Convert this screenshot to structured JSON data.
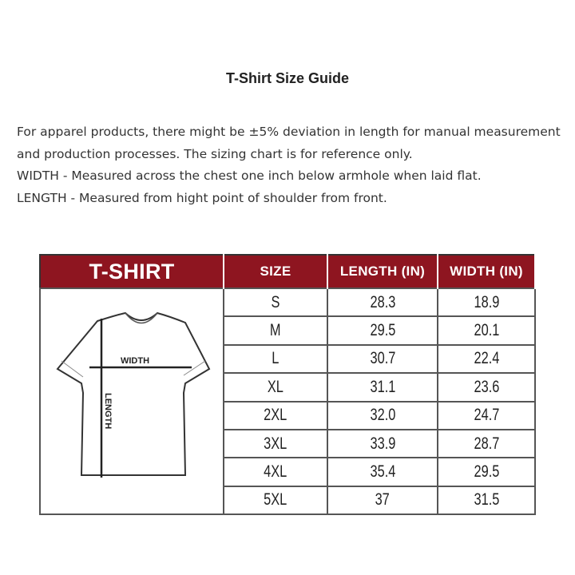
{
  "title": "T-Shirt Size Guide",
  "description": [
    "For apparel products, there might be ±5% deviation in length for manual measurement and production processes. The sizing chart is for reference only.",
    "WIDTH - Measured across the chest one inch below armhole when laid flat.",
    "LENGTH - Measured from hight point of shoulder from front."
  ],
  "table": {
    "headers": [
      "T-SHIRT",
      "SIZE",
      "LENGTH (IN)",
      "WIDTH (IN)"
    ],
    "header_color": "#8e1520",
    "diagram_labels": {
      "width": "WIDTH",
      "length": "LENGTH"
    },
    "rows": [
      {
        "size": "S",
        "length": "28.3",
        "width": "18.9"
      },
      {
        "size": "M",
        "length": "29.5",
        "width": "20.1"
      },
      {
        "size": "L",
        "length": "30.7",
        "width": "22.4"
      },
      {
        "size": "XL",
        "length": "31.1",
        "width": "23.6"
      },
      {
        "size": "2XL",
        "length": "32.0",
        "width": "24.7"
      },
      {
        "size": "3XL",
        "length": "33.9",
        "width": "28.7"
      },
      {
        "size": "4XL",
        "length": "35.4",
        "width": "29.5"
      },
      {
        "size": "5XL",
        "length": "37",
        "width": "31.5"
      }
    ]
  }
}
